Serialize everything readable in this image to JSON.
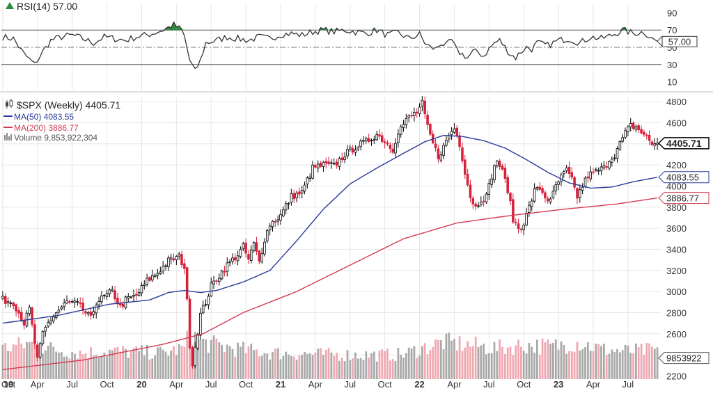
{
  "chart_data": {
    "type": "candlestick",
    "symbol": "$SPX",
    "period": "Weekly",
    "last": 4405.71,
    "last_label": "4405.71",
    "legend": {
      "price": "$SPX (Weekly) 4405.71",
      "ma50": "MA(50) 4083.55",
      "ma200": "MA(200) 3886.77",
      "volume": "Volume 9,853,922,304"
    },
    "price_axis": {
      "ticks": [
        2200,
        2400,
        2600,
        2800,
        3000,
        3200,
        3400,
        3600,
        3800,
        4000,
        4200,
        4400,
        4600,
        4800
      ],
      "ylim": [
        2170,
        4840
      ]
    },
    "price_tags": [
      {
        "label": "4405.71",
        "value": 4405.71,
        "color": "#000000"
      },
      {
        "label": "4083.55",
        "value": 4083.55,
        "color": "#2b3a9a"
      },
      {
        "label": "3886.77",
        "value": 3886.77,
        "color": "#d23c52"
      },
      {
        "label": "9853922",
        "value": 2370,
        "color": "#555555"
      }
    ],
    "x_ticks": [
      {
        "label": "Oct",
        "bold": false
      },
      {
        "label": "19",
        "bold": true
      },
      {
        "label": "Apr",
        "bold": false
      },
      {
        "label": "Jul",
        "bold": false
      },
      {
        "label": "Oct",
        "bold": false
      },
      {
        "label": "20",
        "bold": true
      },
      {
        "label": "Apr",
        "bold": false
      },
      {
        "label": "Jul",
        "bold": false
      },
      {
        "label": "Oct",
        "bold": false
      },
      {
        "label": "21",
        "bold": true
      },
      {
        "label": "Apr",
        "bold": false
      },
      {
        "label": "Jul",
        "bold": false
      },
      {
        "label": "Oct",
        "bold": false
      },
      {
        "label": "22",
        "bold": true
      },
      {
        "label": "Apr",
        "bold": false
      },
      {
        "label": "Jul",
        "bold": false
      },
      {
        "label": "Oct",
        "bold": false
      },
      {
        "label": "23",
        "bold": true
      },
      {
        "label": "Apr",
        "bold": false
      },
      {
        "label": "Jul",
        "bold": false
      }
    ],
    "x_tick_weeks": [
      -12,
      0,
      13,
      26,
      39,
      52,
      65,
      78,
      91,
      104,
      117,
      130,
      143,
      156,
      169,
      182,
      195,
      208,
      221,
      234
    ],
    "weeks": 246,
    "close_anchors": [
      [
        0,
        2920
      ],
      [
        4,
        2900
      ],
      [
        8,
        2700
      ],
      [
        10,
        2830
      ],
      [
        13,
        2350
      ],
      [
        15,
        2600
      ],
      [
        17,
        2700
      ],
      [
        20,
        2800
      ],
      [
        24,
        2900
      ],
      [
        28,
        2880
      ],
      [
        33,
        2740
      ],
      [
        35,
        2900
      ],
      [
        38,
        2950
      ],
      [
        41,
        3000
      ],
      [
        44,
        2850
      ],
      [
        46,
        2920
      ],
      [
        50,
        2960
      ],
      [
        54,
        3100
      ],
      [
        58,
        3180
      ],
      [
        62,
        3290
      ],
      [
        66,
        3330
      ],
      [
        68,
        3230
      ],
      [
        69,
        2900
      ],
      [
        70,
        2500
      ],
      [
        71,
        2320
      ],
      [
        72,
        2480
      ],
      [
        74,
        2780
      ],
      [
        76,
        2900
      ],
      [
        78,
        3050
      ],
      [
        80,
        3120
      ],
      [
        84,
        3250
      ],
      [
        88,
        3350
      ],
      [
        90,
        3420
      ],
      [
        92,
        3300
      ],
      [
        94,
        3450
      ],
      [
        96,
        3280
      ],
      [
        98,
        3500
      ],
      [
        100,
        3640
      ],
      [
        104,
        3720
      ],
      [
        108,
        3900
      ],
      [
        112,
        3940
      ],
      [
        116,
        4170
      ],
      [
        120,
        4200
      ],
      [
        124,
        4190
      ],
      [
        128,
        4300
      ],
      [
        132,
        4370
      ],
      [
        136,
        4420
      ],
      [
        140,
        4490
      ],
      [
        144,
        4400
      ],
      [
        146,
        4350
      ],
      [
        148,
        4520
      ],
      [
        152,
        4650
      ],
      [
        155,
        4700
      ],
      [
        157,
        4780
      ],
      [
        159,
        4550
      ],
      [
        161,
        4400
      ],
      [
        163,
        4280
      ],
      [
        165,
        4370
      ],
      [
        167,
        4480
      ],
      [
        169,
        4550
      ],
      [
        171,
        4400
      ],
      [
        173,
        4140
      ],
      [
        175,
        3900
      ],
      [
        177,
        3800
      ],
      [
        179,
        3880
      ],
      [
        181,
        3900
      ],
      [
        183,
        4100
      ],
      [
        185,
        4250
      ],
      [
        187,
        4130
      ],
      [
        189,
        3970
      ],
      [
        191,
        3680
      ],
      [
        193,
        3600
      ],
      [
        195,
        3650
      ],
      [
        197,
        3800
      ],
      [
        199,
        3950
      ],
      [
        201,
        3980
      ],
      [
        203,
        3900
      ],
      [
        205,
        3850
      ],
      [
        207,
        4000
      ],
      [
        209,
        4080
      ],
      [
        211,
        4150
      ],
      [
        213,
        4050
      ],
      [
        215,
        3900
      ],
      [
        217,
        4000
      ],
      [
        219,
        4100
      ],
      [
        221,
        4120
      ],
      [
        223,
        4150
      ],
      [
        225,
        4170
      ],
      [
        227,
        4250
      ],
      [
        229,
        4300
      ],
      [
        231,
        4400
      ],
      [
        233,
        4500
      ],
      [
        235,
        4570
      ],
      [
        237,
        4560
      ],
      [
        239,
        4510
      ],
      [
        241,
        4460
      ],
      [
        243,
        4400
      ],
      [
        245,
        4405
      ]
    ],
    "ma50_anchors": [
      [
        0,
        2700
      ],
      [
        20,
        2770
      ],
      [
        40,
        2880
      ],
      [
        55,
        2920
      ],
      [
        62,
        2990
      ],
      [
        68,
        3010
      ],
      [
        74,
        2990
      ],
      [
        80,
        3010
      ],
      [
        90,
        3090
      ],
      [
        100,
        3200
      ],
      [
        110,
        3480
      ],
      [
        120,
        3780
      ],
      [
        130,
        4020
      ],
      [
        140,
        4170
      ],
      [
        150,
        4310
      ],
      [
        158,
        4420
      ],
      [
        165,
        4480
      ],
      [
        172,
        4470
      ],
      [
        180,
        4430
      ],
      [
        188,
        4360
      ],
      [
        196,
        4250
      ],
      [
        204,
        4130
      ],
      [
        212,
        4030
      ],
      [
        220,
        3980
      ],
      [
        228,
        3990
      ],
      [
        236,
        4040
      ],
      [
        245,
        4083
      ]
    ],
    "ma200_anchors": [
      [
        0,
        2260
      ],
      [
        30,
        2350
      ],
      [
        60,
        2500
      ],
      [
        75,
        2600
      ],
      [
        90,
        2800
      ],
      [
        110,
        3000
      ],
      [
        130,
        3250
      ],
      [
        150,
        3500
      ],
      [
        170,
        3650
      ],
      [
        190,
        3720
      ],
      [
        210,
        3780
      ],
      [
        230,
        3830
      ],
      [
        245,
        3887
      ]
    ],
    "rsi": {
      "label": "RSI(14) 57.00",
      "value": 57.0,
      "value_label": "57.00",
      "ticks": [
        10,
        30,
        50,
        70,
        90
      ],
      "ylim": [
        0,
        100
      ],
      "overbought": 70,
      "oversold": 30,
      "anchors": [
        [
          0,
          62
        ],
        [
          4,
          60
        ],
        [
          8,
          42
        ],
        [
          12,
          30
        ],
        [
          15,
          45
        ],
        [
          18,
          58
        ],
        [
          22,
          62
        ],
        [
          26,
          64
        ],
        [
          30,
          60
        ],
        [
          34,
          55
        ],
        [
          38,
          62
        ],
        [
          42,
          60
        ],
        [
          46,
          58
        ],
        [
          50,
          62
        ],
        [
          55,
          65
        ],
        [
          60,
          70
        ],
        [
          64,
          76
        ],
        [
          67,
          70
        ],
        [
          68,
          62
        ],
        [
          70,
          35
        ],
        [
          72,
          22
        ],
        [
          74,
          35
        ],
        [
          76,
          55
        ],
        [
          80,
          58
        ],
        [
          84,
          62
        ],
        [
          88,
          60
        ],
        [
          92,
          58
        ],
        [
          96,
          62
        ],
        [
          100,
          60
        ],
        [
          104,
          65
        ],
        [
          108,
          66
        ],
        [
          112,
          64
        ],
        [
          116,
          68
        ],
        [
          120,
          70
        ],
        [
          124,
          68
        ],
        [
          128,
          70
        ],
        [
          132,
          68
        ],
        [
          136,
          66
        ],
        [
          140,
          70
        ],
        [
          144,
          64
        ],
        [
          148,
          67
        ],
        [
          152,
          60
        ],
        [
          156,
          65
        ],
        [
          158,
          55
        ],
        [
          160,
          50
        ],
        [
          162,
          48
        ],
        [
          164,
          55
        ],
        [
          166,
          52
        ],
        [
          168,
          58
        ],
        [
          170,
          46
        ],
        [
          172,
          42
        ],
        [
          174,
          38
        ],
        [
          176,
          45
        ],
        [
          178,
          44
        ],
        [
          180,
          40
        ],
        [
          182,
          48
        ],
        [
          184,
          55
        ],
        [
          186,
          58
        ],
        [
          188,
          50
        ],
        [
          190,
          42
        ],
        [
          192,
          38
        ],
        [
          194,
          45
        ],
        [
          196,
          50
        ],
        [
          198,
          48
        ],
        [
          200,
          55
        ],
        [
          204,
          52
        ],
        [
          208,
          58
        ],
        [
          212,
          60
        ],
        [
          216,
          55
        ],
        [
          220,
          62
        ],
        [
          224,
          60
        ],
        [
          228,
          64
        ],
        [
          232,
          70
        ],
        [
          236,
          66
        ],
        [
          240,
          68
        ],
        [
          243,
          60
        ],
        [
          245,
          57
        ]
      ]
    },
    "volume": {
      "anchors": [
        [
          0,
          1.0
        ],
        [
          10,
          1.15
        ],
        [
          20,
          0.95
        ],
        [
          30,
          0.85
        ],
        [
          40,
          0.9
        ],
        [
          60,
          0.85
        ],
        [
          68,
          1.0
        ],
        [
          70,
          1.5
        ],
        [
          72,
          1.35
        ],
        [
          74,
          1.2
        ],
        [
          80,
          1.1
        ],
        [
          90,
          0.95
        ],
        [
          100,
          0.85
        ],
        [
          120,
          0.8
        ],
        [
          140,
          0.78
        ],
        [
          150,
          0.8
        ],
        [
          155,
          0.95
        ],
        [
          165,
          1.2
        ],
        [
          175,
          1.1
        ],
        [
          185,
          1.0
        ],
        [
          195,
          1.1
        ],
        [
          205,
          1.05
        ],
        [
          215,
          1.2
        ],
        [
          225,
          0.95
        ],
        [
          235,
          0.9
        ],
        [
          245,
          0.95
        ]
      ],
      "ylim": [
        0,
        2.2
      ]
    },
    "colors": {
      "up": "#000000",
      "down": "#d8213a",
      "ma50": "#2b3a9a",
      "ma200": "#d23c52",
      "rsi_line": "#333333",
      "rsi_fill": "#2e8b3f",
      "vol_up": "#a9a9a9",
      "vol_down": "#f0a7b0",
      "grid": "#e6e6e6"
    }
  }
}
